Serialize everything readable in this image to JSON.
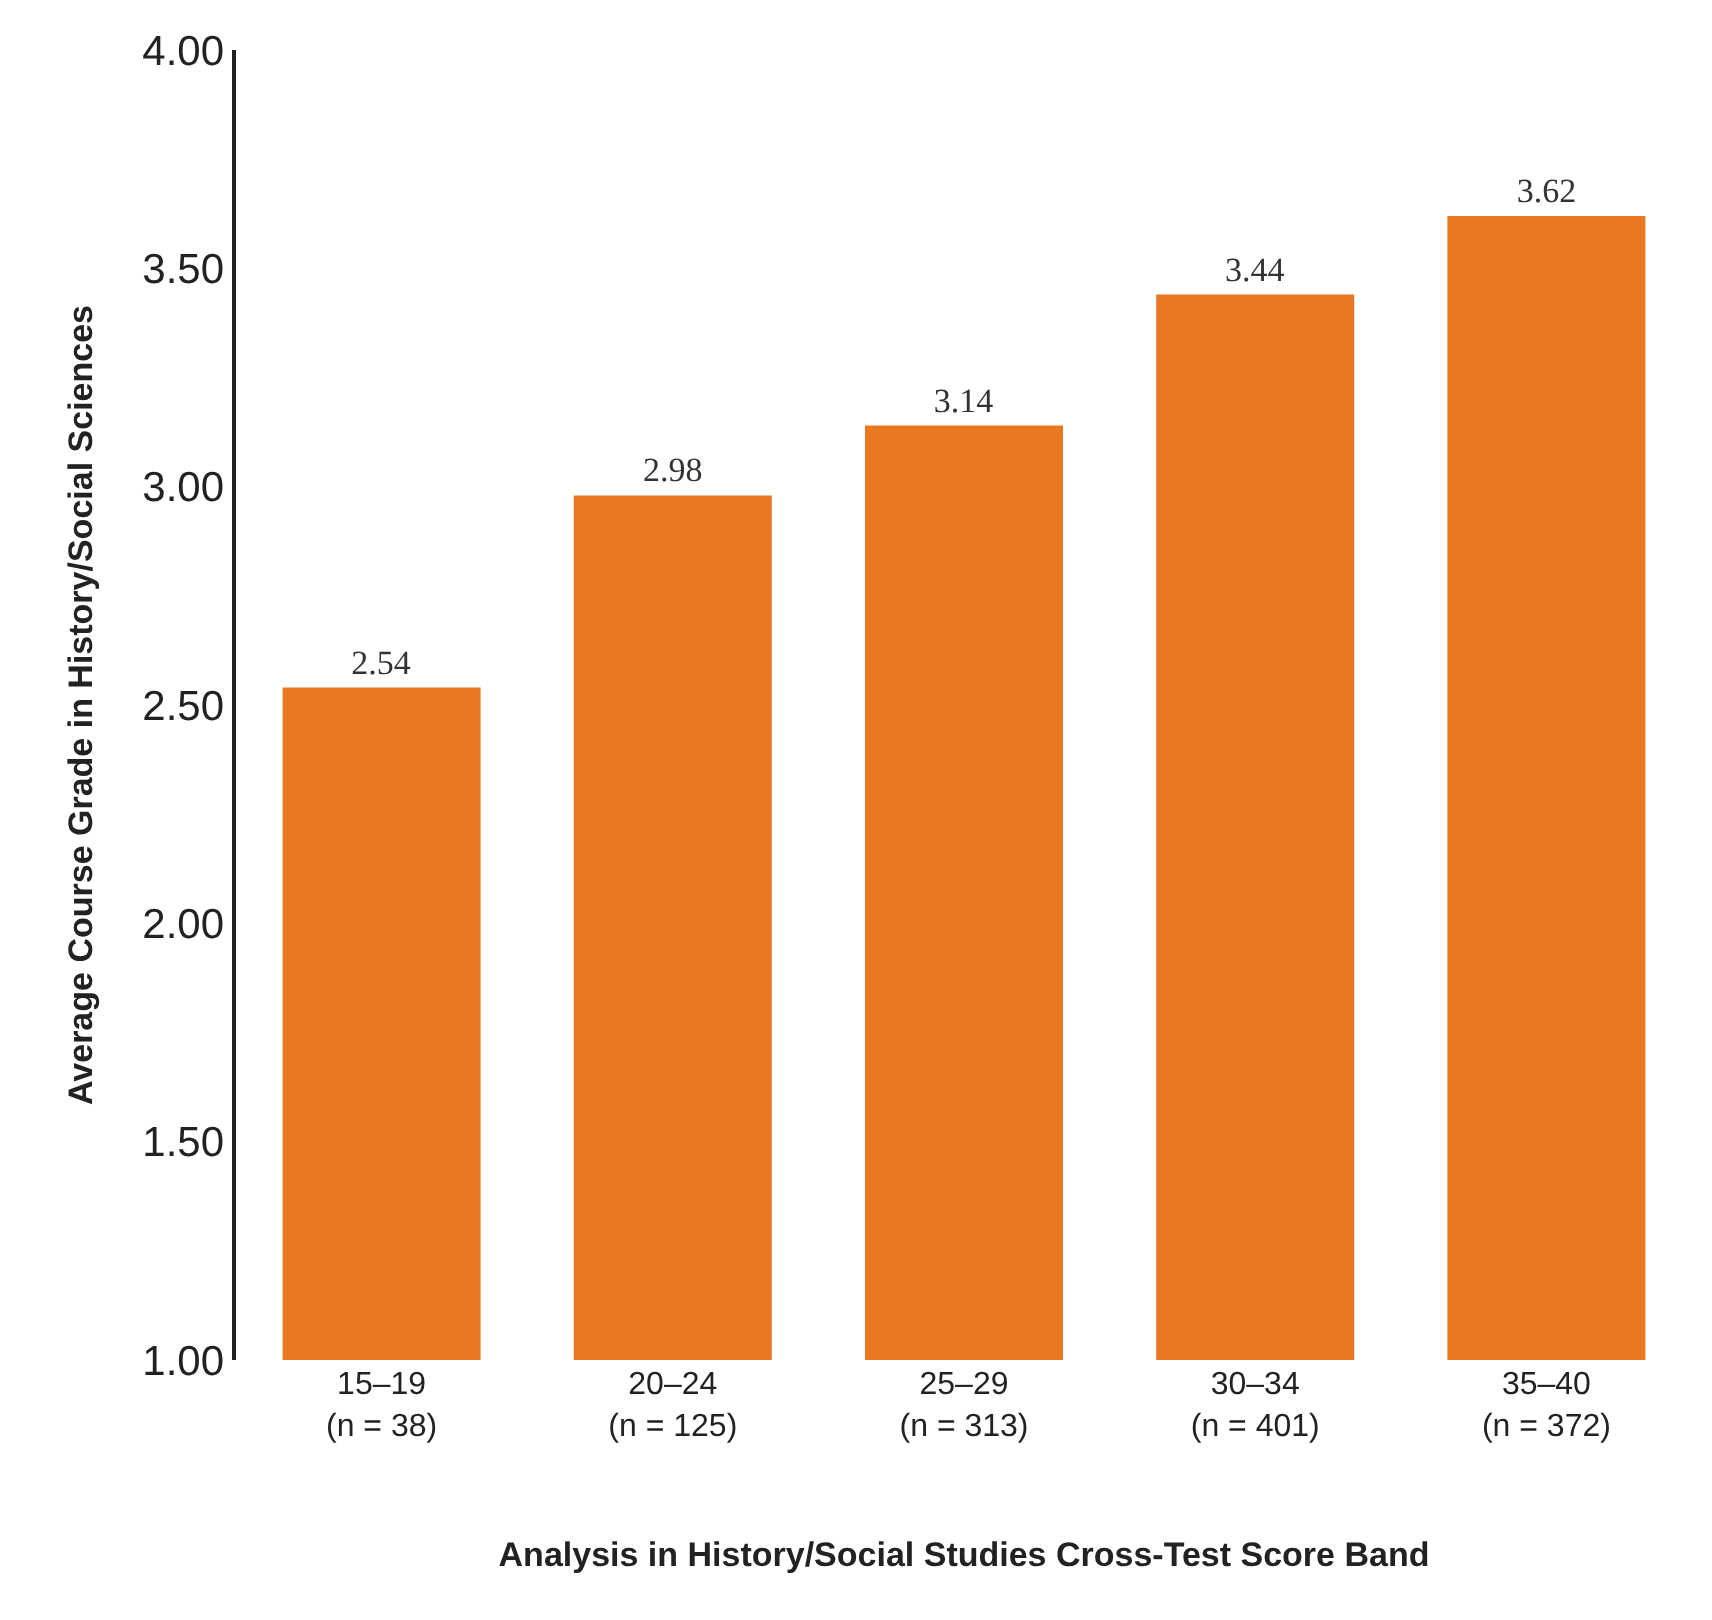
{
  "chart_data": {
    "type": "bar",
    "categories": [
      "15–19\n(n = 38)",
      "20–24\n(n = 125)",
      "25–29\n(n = 313)",
      "30–34\n(n = 401)",
      "35–40\n(n = 372)"
    ],
    "values": [
      2.54,
      2.98,
      3.14,
      3.44,
      3.62
    ],
    "color": "#e87722",
    "data_labels": true,
    "ylim": [
      1,
      4
    ],
    "yticks": [
      {
        "value": 1,
        "label": "1.00"
      },
      {
        "value": 1.5,
        "label": "1.50"
      },
      {
        "value": 2,
        "label": "2.00"
      },
      {
        "value": 2.5,
        "label": "2.50"
      },
      {
        "value": 3,
        "label": "3.00"
      },
      {
        "value": 3.5,
        "label": "3.50"
      },
      {
        "value": 4,
        "label": "4.00"
      }
    ],
    "grid": false,
    "ylabel": "Average Course Grade in History/Social Sciences",
    "xlabel": "Analysis in History/Social Studies Cross-Test Score Band"
  }
}
